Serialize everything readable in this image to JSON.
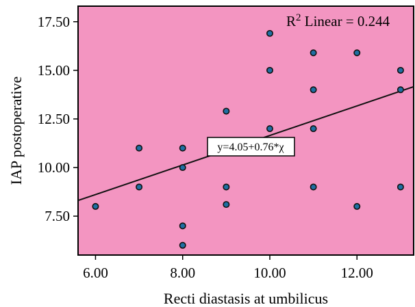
{
  "chart_data": {
    "type": "scatter",
    "xlabel": "Recti diastasis at umbilicus",
    "ylabel": "IAP postoperative",
    "xlim": [
      5.6,
      13.3
    ],
    "ylim": [
      5.5,
      18.3
    ],
    "x_ticks": [
      "6.00",
      "8.00",
      "10.00",
      "12.00"
    ],
    "x_tick_values": [
      6,
      8,
      10,
      12
    ],
    "y_ticks": [
      "7.50",
      "10.00",
      "12.50",
      "15.00",
      "17.50"
    ],
    "y_tick_values": [
      7.5,
      10,
      12.5,
      15,
      17.5
    ],
    "grid": false,
    "points": [
      {
        "x": 6,
        "y": 8.0
      },
      {
        "x": 7,
        "y": 9.0
      },
      {
        "x": 7,
        "y": 11.0
      },
      {
        "x": 8,
        "y": 6.0
      },
      {
        "x": 8,
        "y": 7.0
      },
      {
        "x": 8,
        "y": 10.0
      },
      {
        "x": 8,
        "y": 11.0
      },
      {
        "x": 9,
        "y": 8.1
      },
      {
        "x": 9,
        "y": 9.0
      },
      {
        "x": 9,
        "y": 12.9
      },
      {
        "x": 10,
        "y": 12.0
      },
      {
        "x": 10,
        "y": 15.0
      },
      {
        "x": 10,
        "y": 16.9
      },
      {
        "x": 11,
        "y": 9.0
      },
      {
        "x": 11,
        "y": 12.0
      },
      {
        "x": 11,
        "y": 14.0
      },
      {
        "x": 11,
        "y": 15.9
      },
      {
        "x": 12,
        "y": 8.0
      },
      {
        "x": 12,
        "y": 15.9
      },
      {
        "x": 13,
        "y": 9.0
      },
      {
        "x": 13,
        "y": 14.0
      },
      {
        "x": 13,
        "y": 15.0
      }
    ],
    "fit_line": {
      "intercept": 4.05,
      "slope": 0.76
    },
    "r2_label": "R",
    "r2_sup": "2",
    "r2_text": " Linear = 0.244",
    "equation_label": "y=4.05+0.76*χ",
    "colors": {
      "plot_background": "#f395c1",
      "marker_fill": "#1f6fa3",
      "marker_stroke": "#111111",
      "line": "#111111"
    }
  }
}
